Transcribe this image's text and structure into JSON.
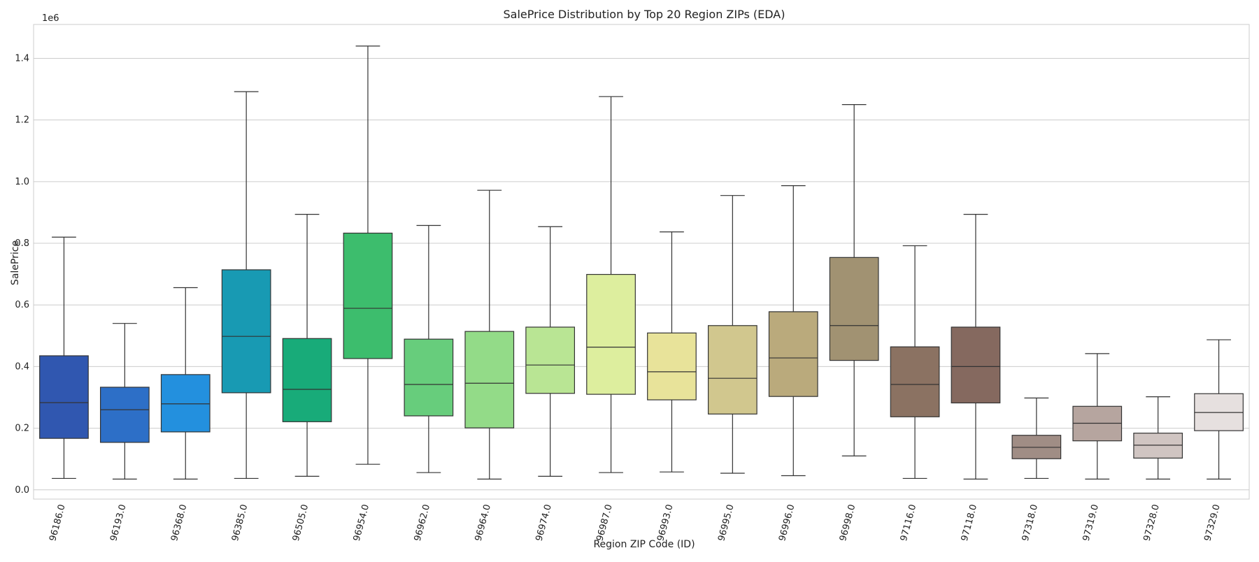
{
  "chart_data": {
    "type": "box",
    "title": "SalePrice Distribution by Top 20 Region ZIPs (EDA)",
    "xlabel": "Region ZIP Code (ID)",
    "ylabel": "SalePrice",
    "y_offset_label": "1e6",
    "ylim": [
      -0.03,
      1.51
    ],
    "yticks": [
      0.0,
      0.2,
      0.4,
      0.6,
      0.8,
      1.0,
      1.2,
      1.4
    ],
    "ytick_labels": [
      "0.0",
      "0.2",
      "0.4",
      "0.6",
      "0.8",
      "1.0",
      "1.2",
      "1.4"
    ],
    "grid": "horizontal",
    "categories": [
      "96186.0",
      "96193.0",
      "96368.0",
      "96385.0",
      "96505.0",
      "96954.0",
      "96962.0",
      "96964.0",
      "96974.0",
      "96987.0",
      "96993.0",
      "96995.0",
      "96996.0",
      "96998.0",
      "97116.0",
      "97118.0",
      "97318.0",
      "97319.0",
      "97328.0",
      "97329.0"
    ],
    "boxes": [
      {
        "category": "96186.0",
        "whisker_low": 0.037,
        "q1": 0.167,
        "median": 0.283,
        "q3": 0.435,
        "whisker_high": 0.82,
        "color": "#3057b0"
      },
      {
        "category": "96193.0",
        "whisker_low": 0.035,
        "q1": 0.154,
        "median": 0.26,
        "q3": 0.333,
        "whisker_high": 0.54,
        "color": "#2d6fc7"
      },
      {
        "category": "96368.0",
        "whisker_low": 0.035,
        "q1": 0.188,
        "median": 0.279,
        "q3": 0.374,
        "whisker_high": 0.656,
        "color": "#2390de"
      },
      {
        "category": "96385.0",
        "whisker_low": 0.037,
        "q1": 0.315,
        "median": 0.498,
        "q3": 0.714,
        "whisker_high": 1.292,
        "color": "#189ab3"
      },
      {
        "category": "96505.0",
        "whisker_low": 0.044,
        "q1": 0.221,
        "median": 0.326,
        "q3": 0.491,
        "whisker_high": 0.894,
        "color": "#18ab79"
      },
      {
        "category": "96954.0",
        "whisker_low": 0.083,
        "q1": 0.426,
        "median": 0.589,
        "q3": 0.833,
        "whisker_high": 1.44,
        "color": "#3dbd6d"
      },
      {
        "category": "96962.0",
        "whisker_low": 0.056,
        "q1": 0.24,
        "median": 0.342,
        "q3": 0.489,
        "whisker_high": 0.858,
        "color": "#67cd7c"
      },
      {
        "category": "96964.0",
        "whisker_low": 0.035,
        "q1": 0.201,
        "median": 0.346,
        "q3": 0.514,
        "whisker_high": 0.972,
        "color": "#93db88"
      },
      {
        "category": "96974.0",
        "whisker_low": 0.044,
        "q1": 0.313,
        "median": 0.405,
        "q3": 0.528,
        "whisker_high": 0.854,
        "color": "#b9e594"
      },
      {
        "category": "96987.0",
        "whisker_low": 0.056,
        "q1": 0.31,
        "median": 0.463,
        "q3": 0.699,
        "whisker_high": 1.276,
        "color": "#ddee9e"
      },
      {
        "category": "96993.0",
        "whisker_low": 0.058,
        "q1": 0.292,
        "median": 0.383,
        "q3": 0.509,
        "whisker_high": 0.837,
        "color": "#e8e39a"
      },
      {
        "category": "96995.0",
        "whisker_low": 0.054,
        "q1": 0.246,
        "median": 0.362,
        "q3": 0.533,
        "whisker_high": 0.955,
        "color": "#d1c78e"
      },
      {
        "category": "96996.0",
        "whisker_low": 0.046,
        "q1": 0.303,
        "median": 0.428,
        "q3": 0.578,
        "whisker_high": 0.987,
        "color": "#baaa7c"
      },
      {
        "category": "96998.0",
        "whisker_low": 0.11,
        "q1": 0.42,
        "median": 0.533,
        "q3": 0.754,
        "whisker_high": 1.25,
        "color": "#a19272"
      },
      {
        "category": "97116.0",
        "whisker_low": 0.037,
        "q1": 0.237,
        "median": 0.342,
        "q3": 0.464,
        "whisker_high": 0.792,
        "color": "#8b7262"
      },
      {
        "category": "97118.0",
        "whisker_low": 0.035,
        "q1": 0.282,
        "median": 0.4,
        "q3": 0.528,
        "whisker_high": 0.894,
        "color": "#85695f"
      },
      {
        "category": "97318.0",
        "whisker_low": 0.037,
        "q1": 0.101,
        "median": 0.138,
        "q3": 0.177,
        "whisker_high": 0.298,
        "color": "#a08d85"
      },
      {
        "category": "97319.0",
        "whisker_low": 0.035,
        "q1": 0.159,
        "median": 0.216,
        "q3": 0.271,
        "whisker_high": 0.442,
        "color": "#b6a59f"
      },
      {
        "category": "97328.0",
        "whisker_low": 0.035,
        "q1": 0.103,
        "median": 0.145,
        "q3": 0.184,
        "whisker_high": 0.302,
        "color": "#d0c5c2"
      },
      {
        "category": "97329.0",
        "whisker_low": 0.035,
        "q1": 0.192,
        "median": 0.251,
        "q3": 0.312,
        "whisker_high": 0.487,
        "color": "#e6e0df"
      }
    ]
  }
}
